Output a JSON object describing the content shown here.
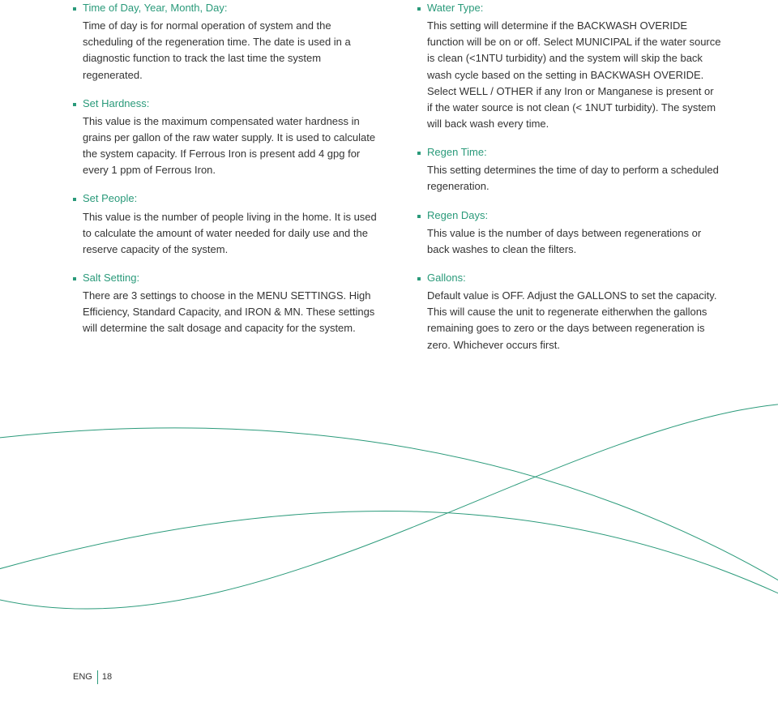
{
  "left": [
    {
      "title": "Time of Day, Year, Month, Day:",
      "body": "Time of day is for normal operation of system and the scheduling of the regeneration time. The date is used in a diagnostic function to track the last time the system regenerated."
    },
    {
      "title": "Set Hardness:",
      "body": "This value is the maximum compensated water hardness in grains per gallon of the raw water supply. It is used to calculate the system capacity. If Ferrous Iron is present add 4 gpg for every 1 ppm of Ferrous Iron."
    },
    {
      "title": "Set People:",
      "body": "This value is the number of people living in the home. It is used to calculate the amount of water needed for daily use and the reserve capacity of the system."
    },
    {
      "title": "Salt Setting:",
      "body": "There are 3 settings to choose in the MENU SETTINGS. High Efficiency, Standard Capacity, and IRON & MN. These settings will determine the salt dosage and capacity for the system."
    }
  ],
  "right": [
    {
      "title": "Water Type:",
      "body": "This setting will determine if the BACKWASH OVERIDE function will be on or off. Select MUNICIPAL if the water source is clean (<1NTU turbidity) and the system will skip the back wash cycle based on the setting in BACKWASH OVERIDE. Select WELL / OTHER if any Iron or Manganese is present or if the water source is not clean (< 1NUT turbidity). The system will back wash every time."
    },
    {
      "title": "Regen Time:",
      "body": "This setting determines the time of day to perform a scheduled regeneration."
    },
    {
      "title": "Regen Days:",
      "body": "This value is the number of days between regenerations or back washes to clean the filters."
    },
    {
      "title": "Gallons:",
      "body": "Default value is OFF. Adjust the GALLONS to set the capacity. This will cause the unit to regenerate eitherwhen the gallons remaining goes to zero or the days between regeneration is zero. Whichever occurs first."
    }
  ],
  "footer": {
    "lang": "ENG",
    "page": "18"
  },
  "curves": {
    "color": "#2a9a7a",
    "stroke_width": 1,
    "paths": [
      "M -50 80 C 250 40, 650 50, 1010 280",
      "M -50 260 C 300 380, 700 30, 1010 30",
      "M -50 250 C 350 130, 700 130, 1010 290"
    ]
  }
}
